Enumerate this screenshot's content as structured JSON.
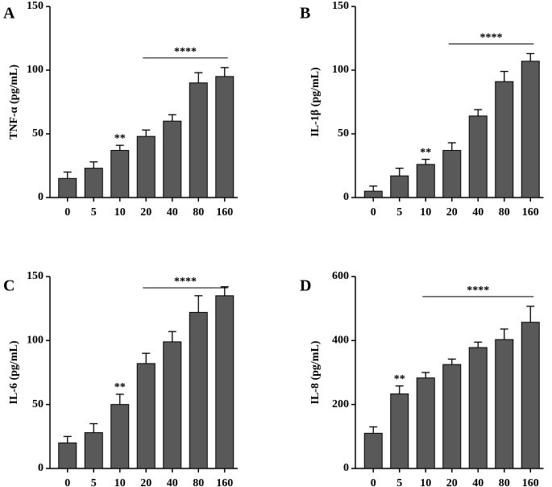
{
  "chart_data": [
    {
      "type": "bar",
      "panel": "A",
      "ylabel": "TNF-α (pg/mL)",
      "color": "#595959",
      "categories": [
        "0",
        "5",
        "10",
        "20",
        "40",
        "80",
        "160"
      ],
      "values": [
        15,
        23,
        37,
        48,
        60,
        90,
        95
      ],
      "errors": [
        5,
        5,
        4,
        5,
        5,
        8,
        7
      ],
      "ylim": [
        0,
        150
      ],
      "yticks": [
        0,
        50,
        100,
        150
      ],
      "annotations": [
        {
          "text": "**",
          "category": "10"
        },
        {
          "text": "****",
          "from": "20",
          "to": "160"
        }
      ]
    },
    {
      "type": "bar",
      "panel": "B",
      "ylabel": "IL-1β (pg/mL)",
      "color": "#595959",
      "categories": [
        "0",
        "5",
        "10",
        "20",
        "40",
        "80",
        "160"
      ],
      "values": [
        5,
        17,
        26,
        37,
        64,
        91,
        107
      ],
      "errors": [
        4,
        6,
        4,
        6,
        5,
        8,
        6
      ],
      "ylim": [
        0,
        150
      ],
      "yticks": [
        0,
        50,
        100,
        150
      ],
      "annotations": [
        {
          "text": "**",
          "category": "10"
        },
        {
          "text": "****",
          "from": "20",
          "to": "160"
        }
      ]
    },
    {
      "type": "bar",
      "panel": "C",
      "ylabel": "IL-6 (pg/mL)",
      "color": "#595959",
      "categories": [
        "0",
        "5",
        "10",
        "20",
        "40",
        "80",
        "160"
      ],
      "values": [
        20,
        28,
        50,
        82,
        99,
        122,
        135
      ],
      "errors": [
        5,
        7,
        8,
        8,
        8,
        13,
        7
      ],
      "ylim": [
        0,
        150
      ],
      "yticks": [
        0,
        50,
        100,
        150
      ],
      "annotations": [
        {
          "text": "**",
          "category": "10"
        },
        {
          "text": "****",
          "from": "20",
          "to": "160"
        }
      ]
    },
    {
      "type": "bar",
      "panel": "D",
      "ylabel": "IL-8 (pg/mL)",
      "color": "#595959",
      "categories": [
        "0",
        "5",
        "10",
        "20",
        "40",
        "80",
        "160"
      ],
      "values": [
        110,
        233,
        283,
        325,
        378,
        403,
        457
      ],
      "errors": [
        20,
        25,
        17,
        17,
        17,
        33,
        50
      ],
      "ylim": [
        0,
        600
      ],
      "yticks": [
        0,
        200,
        400,
        600
      ],
      "annotations": [
        {
          "text": "**",
          "category": "5"
        },
        {
          "text": "****",
          "from": "10",
          "to": "160"
        }
      ]
    }
  ]
}
